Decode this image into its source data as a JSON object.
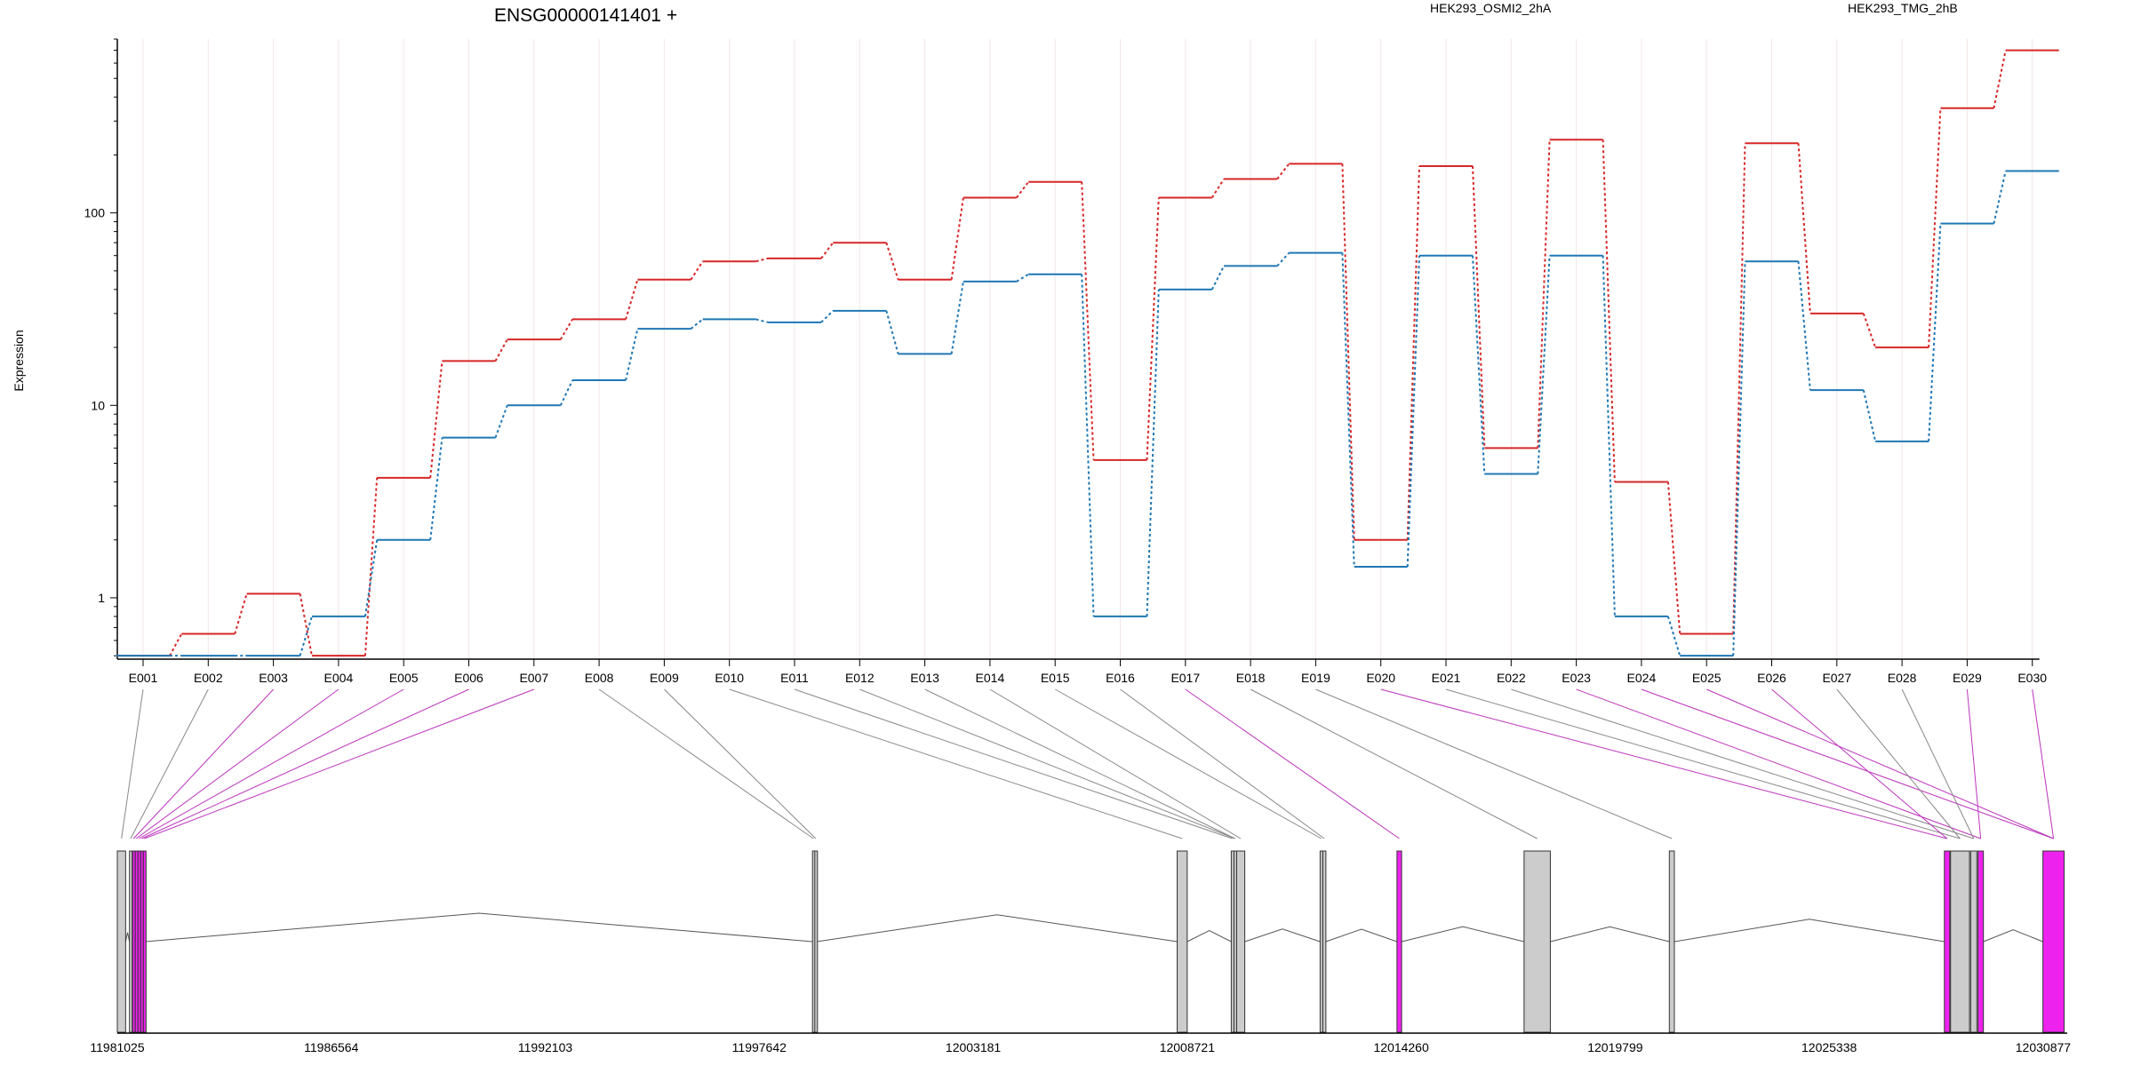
{
  "header": {
    "title": "ENSG00000141401 +",
    "legend": [
      {
        "label": "HEK293_OSMI2_2hA",
        "color": "#d62728"
      },
      {
        "label": "HEK293_TMG_2hB",
        "color": "#1f77b4"
      }
    ]
  },
  "colors": {
    "exon_default": "#cccccc",
    "exon_highlight": "#ee22ee",
    "connector_default": "#888888",
    "connector_highlight": "#bb33bb"
  },
  "chart_data": {
    "type": "line",
    "title": "ENSG00000141401 +",
    "ylabel": "Expression",
    "xlabel": "",
    "yscale": "log",
    "ylim": [
      0.48,
      800
    ],
    "yticks": [
      1,
      10,
      100
    ],
    "ytick_labels": [
      "1",
      "10",
      "100"
    ],
    "grid": true,
    "legend_position": "top-right",
    "categories": [
      "E001",
      "E002",
      "E003",
      "E004",
      "E005",
      "E006",
      "E007",
      "E008",
      "E009",
      "E010",
      "E011",
      "E012",
      "E013",
      "E014",
      "E015",
      "E016",
      "E017",
      "E018",
      "E019",
      "E020",
      "E021",
      "E022",
      "E023",
      "E024",
      "E025",
      "E026",
      "E027",
      "E028",
      "E029",
      "E030"
    ],
    "series": [
      {
        "name": "HEK293_OSMI2_2hA",
        "color": "#d62728",
        "values": [
          0.5,
          0.65,
          1.05,
          0.5,
          4.2,
          17,
          22,
          28,
          45,
          56,
          58,
          70,
          45,
          120,
          145,
          5.2,
          120,
          150,
          180,
          2.0,
          175,
          6.0,
          240,
          4.0,
          0.65,
          230,
          30,
          20,
          350,
          700
        ]
      },
      {
        "name": "HEK293_TMG_2hB",
        "color": "#1f77b4",
        "values": [
          0.5,
          0.5,
          0.5,
          0.8,
          2.0,
          6.8,
          10,
          13.5,
          25,
          28,
          27,
          31,
          18.5,
          44,
          48,
          0.8,
          40,
          53,
          62,
          1.45,
          60,
          4.4,
          60,
          0.8,
          0.5,
          56,
          12,
          6.5,
          88,
          165
        ]
      }
    ]
  },
  "gene_model": {
    "axis_min": 11981025,
    "axis_max": 12031500,
    "tick_labels": [
      "11981025",
      "11986564",
      "11992103",
      "11997642",
      "12003181",
      "12008721",
      "12014260",
      "12019799",
      "12025338",
      "12030877"
    ],
    "exons": [
      {
        "start": 11981025,
        "end": 11981240,
        "highlight": false
      },
      {
        "start": 11981340,
        "end": 11981400,
        "highlight": false
      },
      {
        "start": 11981420,
        "end": 11981470,
        "highlight": true
      },
      {
        "start": 11981490,
        "end": 11981540,
        "highlight": true
      },
      {
        "start": 11981560,
        "end": 11981610,
        "highlight": true
      },
      {
        "start": 11981630,
        "end": 11981680,
        "highlight": true
      },
      {
        "start": 11981700,
        "end": 11981750,
        "highlight": true
      },
      {
        "start": 11999020,
        "end": 11999070,
        "highlight": false
      },
      {
        "start": 11999080,
        "end": 11999130,
        "highlight": false
      },
      {
        "start": 12008460,
        "end": 12008720,
        "highlight": false
      },
      {
        "start": 12009860,
        "end": 12009920,
        "highlight": false
      },
      {
        "start": 12009930,
        "end": 12009990,
        "highlight": false
      },
      {
        "start": 12010000,
        "end": 12010210,
        "highlight": false
      },
      {
        "start": 12012160,
        "end": 12012220,
        "highlight": false
      },
      {
        "start": 12012230,
        "end": 12012310,
        "highlight": false
      },
      {
        "start": 12014150,
        "end": 12014270,
        "highlight": true
      },
      {
        "start": 12017440,
        "end": 12018120,
        "highlight": false
      },
      {
        "start": 12021200,
        "end": 12021330,
        "highlight": false
      },
      {
        "start": 12028320,
        "end": 12028460,
        "highlight": true
      },
      {
        "start": 12028480,
        "end": 12028970,
        "highlight": false
      },
      {
        "start": 12029000,
        "end": 12029160,
        "highlight": false
      },
      {
        "start": 12029190,
        "end": 12029330,
        "highlight": true
      },
      {
        "start": 12030870,
        "end": 12031420,
        "highlight": true
      }
    ],
    "connectors": [
      {
        "exon": 0,
        "target": 0
      },
      {
        "exon": 1,
        "target": 1
      },
      {
        "exon": 2,
        "target": 2
      },
      {
        "exon": 3,
        "target": 3
      },
      {
        "exon": 4,
        "target": 4
      },
      {
        "exon": 5,
        "target": 5
      },
      {
        "exon": 6,
        "target": 6
      },
      {
        "exon": 7,
        "target": 7
      },
      {
        "exon": 8,
        "target": 8
      },
      {
        "exon": 9,
        "target": 9
      },
      {
        "exon": 10,
        "target": 10
      },
      {
        "exon": 11,
        "target": 11
      },
      {
        "exon": 12,
        "target": 11
      },
      {
        "exon": 13,
        "target": 12
      },
      {
        "exon": 14,
        "target": 13
      },
      {
        "exon": 15,
        "target": 14
      },
      {
        "exon": 16,
        "target": 15
      },
      {
        "exon": 17,
        "target": 16
      },
      {
        "exon": 18,
        "target": 17
      },
      {
        "exon": 19,
        "target": 18
      },
      {
        "exon": 20,
        "target": 19
      },
      {
        "exon": 21,
        "target": 20
      },
      {
        "exon": 22,
        "target": 21
      },
      {
        "exon": 23,
        "target": 22
      },
      {
        "exon": 24,
        "target": 22
      },
      {
        "exon": 25,
        "target": 18
      },
      {
        "exon": 26,
        "target": 19
      },
      {
        "exon": 27,
        "target": 20
      },
      {
        "exon": 28,
        "target": 21
      },
      {
        "exon": 29,
        "target": 22
      }
    ]
  }
}
